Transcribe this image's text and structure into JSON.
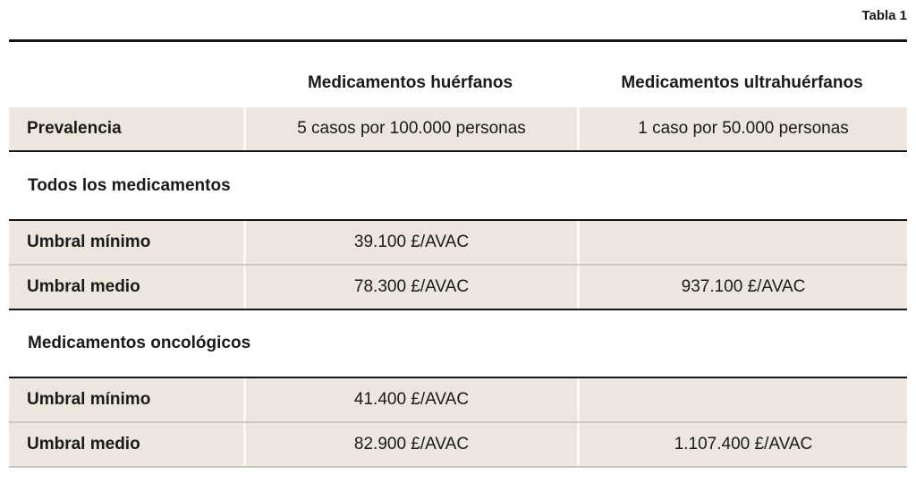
{
  "table": {
    "caption": "Tabla 1",
    "col_headers": {
      "orphan": "Medicamentos huérfanos",
      "ultra_orphan": "Medicamentos ultrahuérfanos"
    },
    "prevalence_row": {
      "label": "Prevalencia",
      "orphan": "5 casos por 100.000 personas",
      "ultra_orphan": "1 caso por 50.000 personas"
    },
    "sections": [
      {
        "title": "Todos los medicamentos",
        "rows": [
          {
            "label": "Umbral mínimo",
            "orphan": "39.100 £/AVAC",
            "ultra_orphan": ""
          },
          {
            "label": "Umbral medio",
            "orphan": "78.300 £/AVAC",
            "ultra_orphan": "937.100 £/AVAC"
          }
        ]
      },
      {
        "title": "Medicamentos oncológicos",
        "rows": [
          {
            "label": "Umbral mínimo",
            "orphan": "41.400 £/AVAC",
            "ultra_orphan": ""
          },
          {
            "label": "Umbral medio",
            "orphan": "82.900 £/AVAC",
            "ultra_orphan": "1.107.400 £/AVAC"
          }
        ]
      }
    ],
    "colors": {
      "row_background": "#ece6de",
      "heavy_rule": "#161616",
      "row_divider": "#ccc8c2",
      "column_divider": "#faf8f4",
      "bottom_rule": "#c9c5c0",
      "text": "#1a1a1a"
    }
  }
}
